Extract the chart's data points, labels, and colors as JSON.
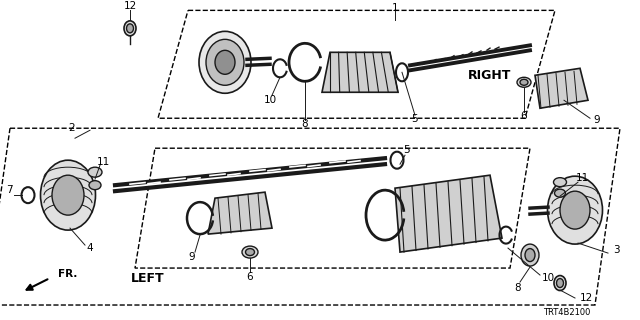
{
  "bg_color": "#ffffff",
  "line_color": "#1a1a1a",
  "text_color": "#000000",
  "diagram_code": "TRT4B2100",
  "right_label": "RIGHT",
  "left_label": "LEFT",
  "fr_label": "FR."
}
